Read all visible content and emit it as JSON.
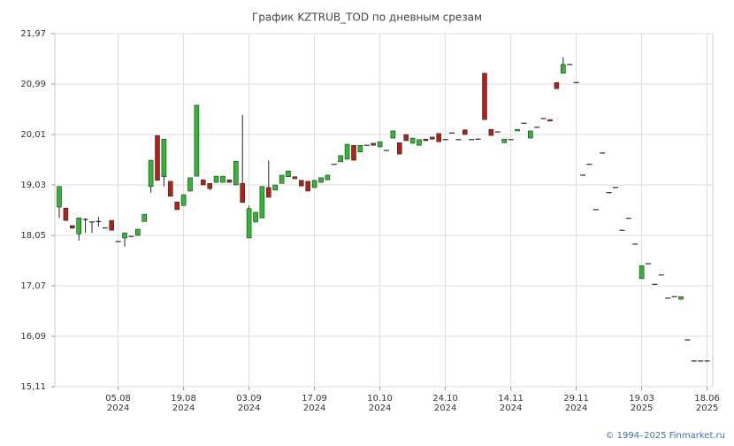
{
  "chart_data": {
    "type": "candlestick",
    "title": "График KZTRUB_TOD по дневным срезам",
    "categories": [
      null,
      null,
      null,
      null,
      null,
      null,
      null,
      null,
      null,
      [
        "05.08",
        "2024"
      ],
      null,
      null,
      null,
      null,
      null,
      null,
      null,
      null,
      null,
      [
        "19.08",
        "2024"
      ],
      null,
      null,
      null,
      null,
      null,
      null,
      null,
      null,
      null,
      [
        "03.09",
        "2024"
      ],
      null,
      null,
      null,
      null,
      null,
      null,
      null,
      null,
      null,
      [
        "17.09",
        "2024"
      ],
      null,
      null,
      null,
      null,
      null,
      null,
      null,
      null,
      null,
      [
        "10.10",
        "2024"
      ],
      null,
      null,
      null,
      null,
      null,
      null,
      null,
      null,
      null,
      [
        "24.10",
        "2024"
      ],
      null,
      null,
      null,
      null,
      null,
      null,
      null,
      null,
      null,
      [
        "14.11",
        "2024"
      ],
      null,
      null,
      null,
      null,
      null,
      null,
      null,
      null,
      null,
      [
        "29.11",
        "2024"
      ],
      null,
      null,
      null,
      null,
      null,
      null,
      null,
      null,
      null,
      [
        "19.03",
        "2025"
      ],
      null,
      null,
      null,
      null,
      null,
      null,
      null,
      null,
      null,
      [
        "18.06",
        "2025"
      ]
    ],
    "open": [
      18.6,
      18.58,
      18.24,
      18.08,
      18.36,
      18.31,
      18.32,
      18.2,
      18.34,
      17.93,
      18.0,
      18.03,
      18.05,
      18.32,
      19.0,
      19.99,
      19.19,
      19.1,
      18.7,
      18.63,
      18.91,
      19.2,
      19.13,
      19.06,
      19.08,
      19.08,
      19.13,
      19.03,
      19.06,
      18.0,
      18.31,
      18.39,
      18.98,
      18.93,
      19.06,
      19.19,
      19.19,
      19.12,
      19.1,
      18.98,
      19.08,
      19.13,
      19.43,
      19.48,
      19.53,
      19.8,
      19.67,
      19.8,
      19.84,
      19.77,
      19.7,
      19.94,
      19.85,
      20.01,
      19.84,
      19.8,
      19.92,
      19.96,
      20.03,
      19.91,
      20.04,
      19.91,
      20.1,
      19.91,
      19.92,
      21.2,
      20.11,
      20.06,
      19.85,
      19.91,
      20.08,
      20.23,
      19.94,
      20.15,
      20.32,
      20.3,
      21.02,
      21.2,
      21.37,
      21.02,
      19.22,
      19.43,
      18.55,
      19.65,
      18.88,
      18.98,
      18.15,
      18.38,
      17.88,
      17.21,
      17.5,
      17.1,
      17.28,
      16.83,
      16.86,
      16.81,
      16.02,
      15.61,
      15.61,
      15.61
    ],
    "high": [
      19.0,
      18.58,
      18.24,
      18.39,
      18.38,
      18.31,
      18.41,
      18.2,
      18.34,
      17.93,
      18.1,
      18.03,
      18.17,
      18.46,
      19.51,
      19.99,
      19.92,
      19.1,
      18.7,
      18.84,
      19.17,
      20.58,
      19.13,
      19.06,
      19.2,
      19.2,
      19.13,
      19.49,
      20.39,
      18.63,
      18.5,
      19.0,
      19.51,
      19.03,
      19.22,
      19.3,
      19.19,
      19.12,
      19.1,
      19.12,
      19.17,
      19.22,
      19.43,
      19.6,
      19.82,
      19.8,
      19.8,
      19.8,
      19.84,
      19.87,
      19.7,
      20.08,
      19.85,
      20.01,
      19.94,
      19.91,
      19.92,
      19.96,
      20.03,
      19.91,
      20.04,
      19.91,
      20.1,
      19.91,
      19.92,
      21.2,
      20.11,
      20.06,
      19.92,
      19.91,
      20.11,
      20.23,
      20.08,
      20.15,
      20.32,
      20.3,
      21.02,
      21.51,
      21.37,
      21.02,
      19.22,
      19.43,
      18.55,
      19.65,
      18.88,
      18.98,
      18.15,
      18.38,
      17.88,
      17.46,
      17.5,
      17.1,
      17.28,
      16.83,
      16.86,
      16.86,
      16.02,
      15.61,
      15.61,
      15.61
    ],
    "low": [
      18.39,
      18.34,
      18.19,
      17.95,
      18.1,
      18.1,
      18.22,
      18.19,
      18.15,
      17.93,
      17.83,
      18.03,
      18.05,
      18.32,
      18.88,
      19.12,
      19.0,
      18.81,
      18.55,
      18.63,
      18.91,
      19.2,
      19.03,
      18.93,
      19.08,
      19.08,
      19.08,
      19.03,
      18.69,
      18.0,
      18.31,
      18.39,
      18.79,
      18.93,
      19.06,
      19.19,
      19.15,
      19.01,
      18.91,
      18.98,
      19.08,
      19.13,
      19.43,
      19.48,
      19.53,
      19.51,
      19.67,
      19.8,
      19.8,
      19.77,
      19.7,
      19.94,
      19.63,
      19.89,
      19.84,
      19.8,
      19.89,
      19.92,
      19.87,
      19.91,
      20.04,
      19.91,
      20.01,
      19.91,
      19.92,
      20.3,
      19.99,
      20.06,
      19.85,
      19.91,
      20.08,
      20.23,
      19.94,
      20.15,
      20.32,
      20.27,
      20.9,
      21.2,
      21.37,
      21.02,
      19.22,
      19.43,
      18.55,
      19.65,
      18.88,
      18.98,
      18.15,
      18.38,
      17.88,
      17.21,
      17.5,
      17.1,
      17.28,
      16.83,
      16.86,
      16.81,
      16.02,
      15.61,
      15.61,
      15.61
    ],
    "close": [
      19.0,
      18.34,
      18.19,
      18.39,
      18.36,
      18.31,
      18.32,
      18.19,
      18.15,
      17.93,
      18.1,
      18.03,
      18.17,
      18.46,
      19.51,
      19.12,
      19.92,
      18.81,
      18.55,
      18.84,
      19.17,
      20.58,
      19.03,
      18.96,
      19.2,
      19.2,
      19.08,
      19.49,
      18.69,
      18.57,
      18.5,
      19.0,
      18.79,
      19.03,
      19.22,
      19.3,
      19.15,
      19.01,
      18.91,
      19.12,
      19.17,
      19.22,
      19.43,
      19.6,
      19.82,
      19.51,
      19.8,
      19.8,
      19.8,
      19.87,
      19.7,
      20.08,
      19.63,
      19.89,
      19.94,
      19.91,
      19.89,
      19.92,
      19.87,
      19.91,
      20.04,
      19.91,
      20.01,
      19.91,
      19.92,
      20.3,
      19.99,
      20.06,
      19.92,
      19.91,
      20.11,
      20.23,
      20.08,
      20.15,
      20.32,
      20.27,
      20.9,
      21.37,
      21.37,
      21.02,
      19.22,
      19.43,
      18.55,
      19.65,
      18.88,
      18.98,
      18.15,
      18.38,
      17.88,
      17.46,
      17.5,
      17.1,
      17.28,
      16.83,
      16.86,
      16.86,
      16.02,
      15.61,
      15.61,
      15.61
    ],
    "up_color": "#35b535",
    "down_color": "#b81c1c",
    "flat_color": "#000000",
    "ylim": [
      15.11,
      21.97
    ],
    "yticks": [
      {
        "value": 15.11,
        "label": "15,11"
      },
      {
        "value": 16.09,
        "label": "16,09"
      },
      {
        "value": 17.07,
        "label": "17,07"
      },
      {
        "value": 18.05,
        "label": "18,05"
      },
      {
        "value": 19.03,
        "label": "19,03"
      },
      {
        "value": 20.01,
        "label": "20,01"
      },
      {
        "value": 20.99,
        "label": "20,99"
      },
      {
        "value": 21.97,
        "label": "21,97"
      }
    ],
    "grid": true
  },
  "footer": "© 1994–2025 Finmarket.ru"
}
